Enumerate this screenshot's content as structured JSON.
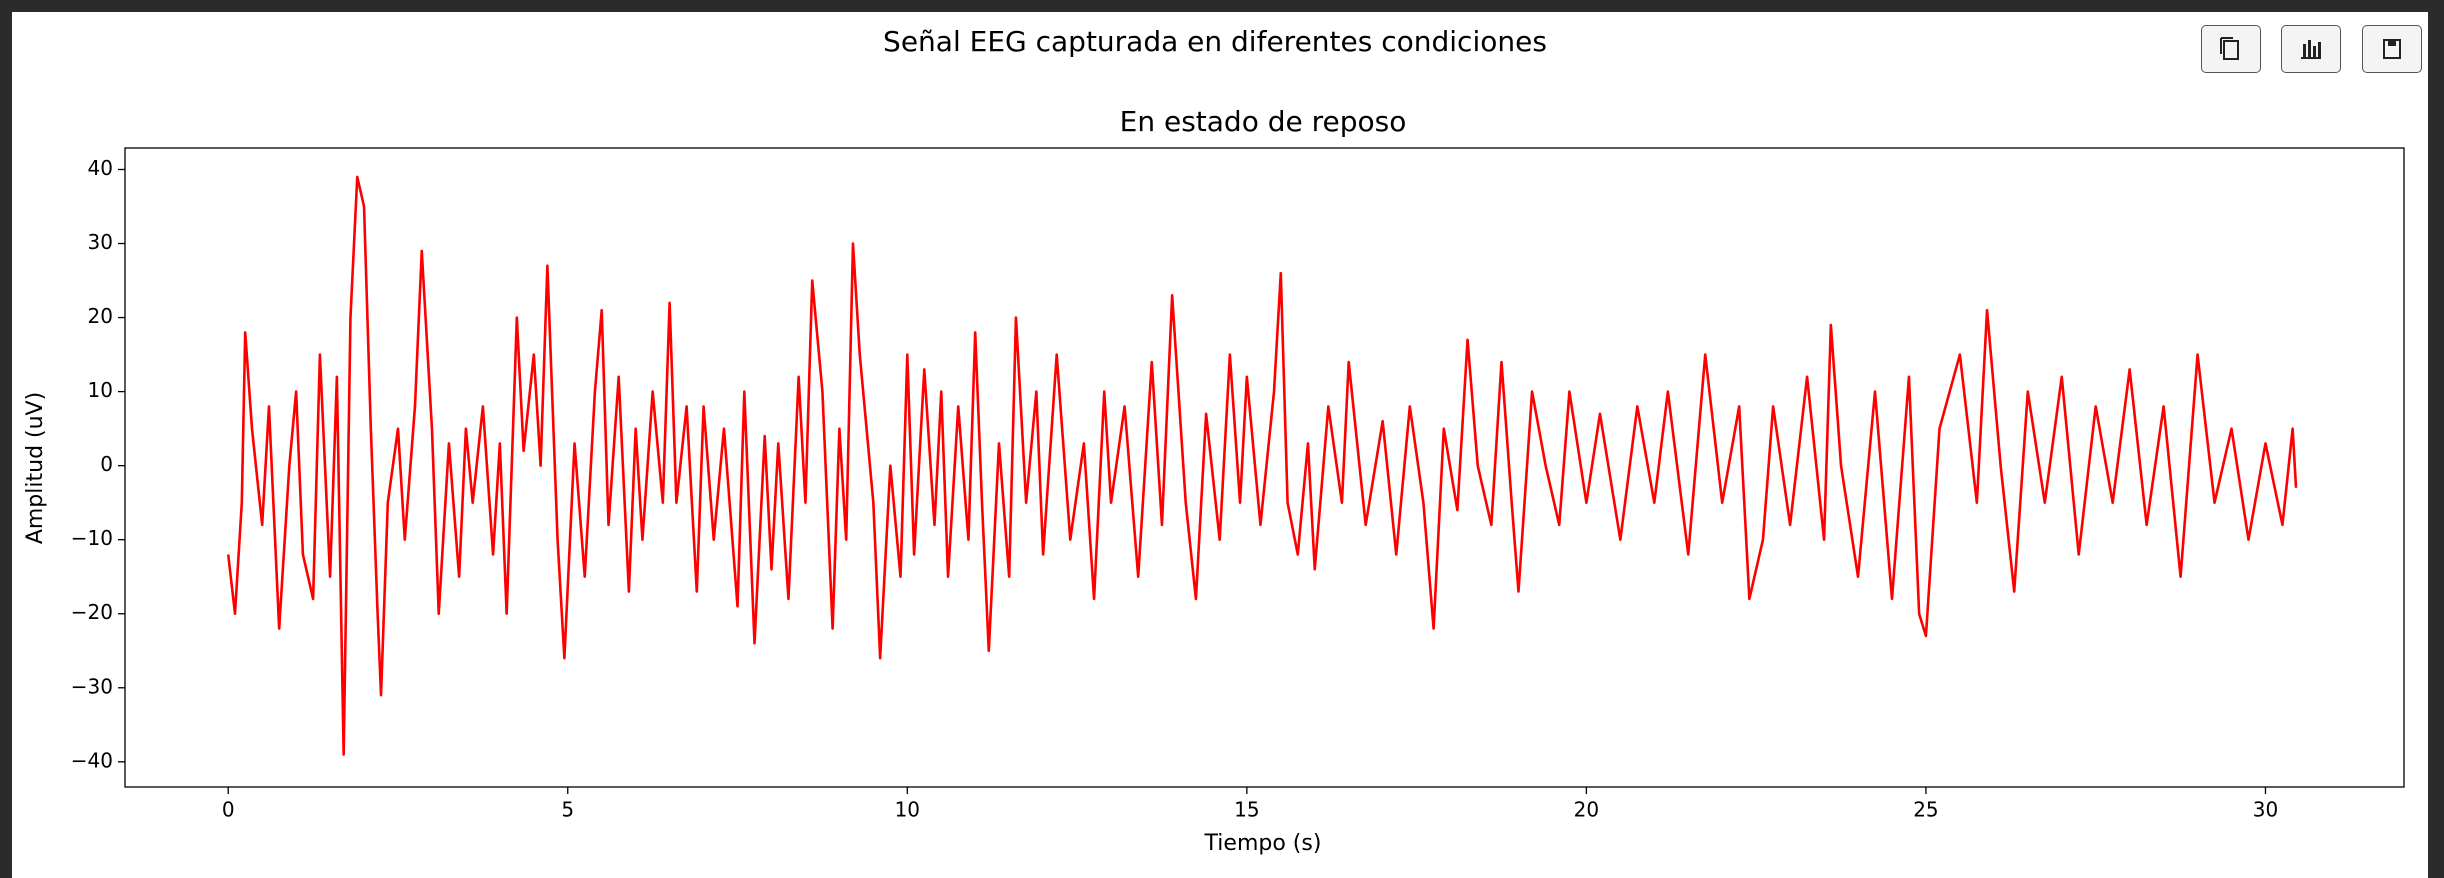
{
  "chart_data": {
    "type": "line",
    "title": "Señal EEG capturada en diferentes condiciones",
    "subtitle": "En estado de reposo",
    "xlabel": "Tiempo (s)",
    "ylabel": "Amplitud (uV)",
    "color": "#ff0000",
    "x": [
      0,
      0.1,
      0.2,
      0.25,
      0.35,
      0.5,
      0.6,
      0.75,
      0.9,
      1.0,
      1.1,
      1.25,
      1.35,
      1.5,
      1.6,
      1.7,
      1.8,
      1.9,
      2.0,
      2.1,
      2.2,
      2.25,
      2.35,
      2.5,
      2.6,
      2.75,
      2.85,
      3.0,
      3.1,
      3.25,
      3.4,
      3.5,
      3.6,
      3.75,
      3.9,
      4.0,
      4.1,
      4.25,
      4.35,
      4.5,
      4.6,
      4.7,
      4.85,
      4.95,
      5.1,
      5.25,
      5.4,
      5.5,
      5.6,
      5.75,
      5.9,
      6.0,
      6.1,
      6.25,
      6.4,
      6.5,
      6.6,
      6.75,
      6.9,
      7.0,
      7.15,
      7.3,
      7.5,
      7.6,
      7.75,
      7.9,
      8.0,
      8.1,
      8.25,
      8.4,
      8.5,
      8.6,
      8.75,
      8.9,
      9.0,
      9.1,
      9.2,
      9.3,
      9.5,
      9.6,
      9.75,
      9.9,
      10.0,
      10.1,
      10.25,
      10.4,
      10.5,
      10.6,
      10.75,
      10.9,
      11.0,
      11.1,
      11.2,
      11.35,
      11.5,
      11.6,
      11.75,
      11.9,
      12.0,
      12.2,
      12.4,
      12.6,
      12.75,
      12.9,
      13.0,
      13.2,
      13.4,
      13.6,
      13.75,
      13.9,
      14.1,
      14.25,
      14.4,
      14.6,
      14.75,
      14.9,
      15.0,
      15.2,
      15.4,
      15.5,
      15.6,
      15.75,
      15.9,
      16.0,
      16.2,
      16.4,
      16.5,
      16.75,
      17.0,
      17.2,
      17.4,
      17.6,
      17.75,
      17.9,
      18.1,
      18.25,
      18.4,
      18.6,
      18.75,
      18.9,
      19.0,
      19.2,
      19.4,
      19.6,
      19.75,
      20.0,
      20.2,
      20.5,
      20.75,
      21.0,
      21.2,
      21.5,
      21.75,
      22.0,
      22.25,
      22.4,
      22.6,
      22.75,
      23.0,
      23.25,
      23.5,
      23.6,
      23.75,
      24.0,
      24.25,
      24.5,
      24.75,
      24.9,
      25.0,
      25.2,
      25.5,
      25.75,
      25.9,
      26.1,
      26.3,
      26.5,
      26.75,
      27.0,
      27.25,
      27.5,
      27.75,
      28.0,
      28.25,
      28.5,
      28.75,
      29.0,
      29.25,
      29.5,
      29.75,
      30.0,
      30.25,
      30.4,
      30.45
    ],
    "values": [
      -12,
      -20,
      -5,
      18,
      5,
      -8,
      8,
      -22,
      0,
      10,
      -12,
      -18,
      15,
      -15,
      12,
      -39,
      20,
      39,
      35,
      5,
      -20,
      -31,
      -5,
      5,
      -10,
      8,
      29,
      5,
      -20,
      3,
      -15,
      5,
      -5,
      8,
      -12,
      3,
      -20,
      20,
      2,
      15,
      0,
      27,
      -10,
      -26,
      3,
      -15,
      10,
      21,
      -8,
      12,
      -17,
      5,
      -10,
      10,
      -5,
      22,
      -5,
      8,
      -17,
      8,
      -10,
      5,
      -19,
      10,
      -24,
      4,
      -14,
      3,
      -18,
      12,
      -5,
      25,
      10,
      -22,
      5,
      -10,
      30,
      15,
      -5,
      -26,
      0,
      -15,
      15,
      -12,
      13,
      -8,
      10,
      -15,
      8,
      -10,
      18,
      -5,
      -25,
      3,
      -15,
      20,
      -5,
      10,
      -12,
      15,
      -10,
      3,
      -18,
      10,
      -5,
      8,
      -15,
      14,
      -8,
      23,
      -5,
      -18,
      7,
      -10,
      15,
      -5,
      12,
      -8,
      10,
      26,
      -5,
      -12,
      3,
      -14,
      8,
      -5,
      14,
      -8,
      6,
      -12,
      8,
      -5,
      -22,
      5,
      -6,
      17,
      0,
      -8,
      14,
      -5,
      -17,
      10,
      0,
      -8,
      10,
      -5,
      7,
      -10,
      8,
      -5,
      10,
      -12,
      15,
      -5,
      8,
      -18,
      -10,
      8,
      -8,
      12,
      -10,
      19,
      0,
      -15,
      10,
      -18,
      12,
      -20,
      -23,
      5,
      15,
      -5,
      21,
      0,
      -17,
      10,
      -5,
      12,
      -12,
      8,
      -5,
      13,
      -8,
      8,
      -15,
      15,
      -5,
      5,
      -10,
      3,
      -8,
      5,
      -3
    ],
    "xlim": [
      -1.52,
      32.04
    ],
    "ylim": [
      -43.4,
      42.9
    ],
    "xticks": [
      0,
      5,
      10,
      15,
      20,
      25,
      30
    ],
    "yticks": [
      {
        "value": -40,
        "label": "−40"
      },
      {
        "value": -30,
        "label": "−30"
      },
      {
        "value": -20,
        "label": "−20"
      },
      {
        "value": -10,
        "label": "−10"
      },
      0,
      10,
      20,
      30,
      40
    ],
    "grid": false
  }
}
